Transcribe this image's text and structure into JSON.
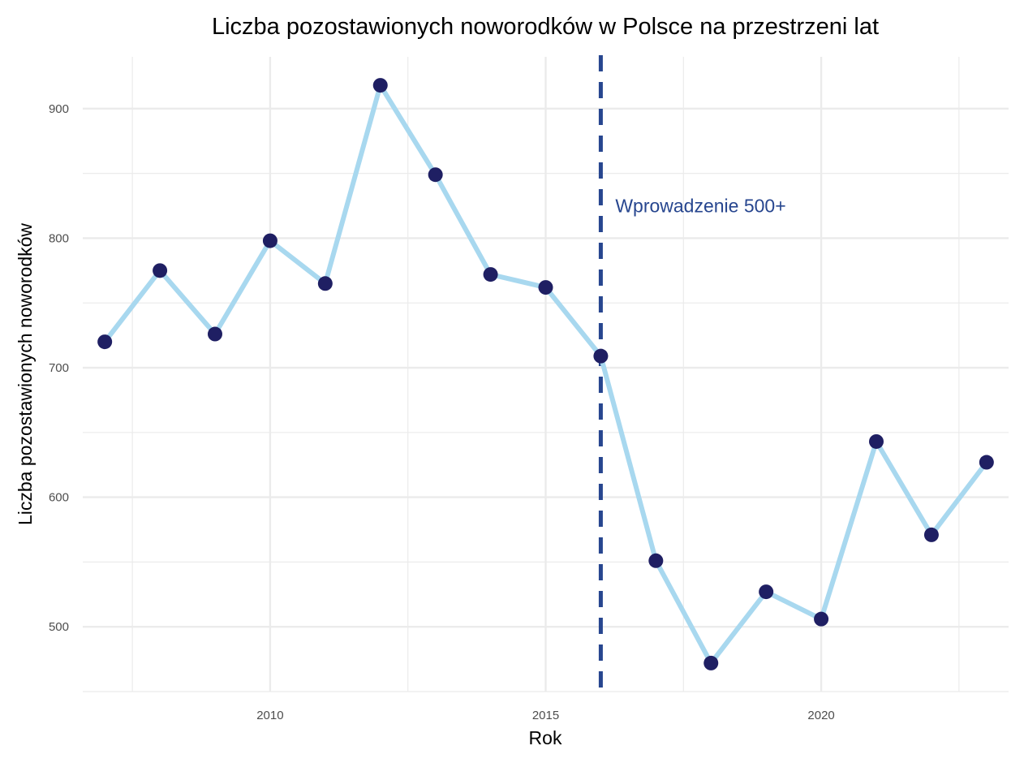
{
  "chart_data": {
    "type": "line",
    "title": "Liczba pozostawionych noworodków w Polsce na przestrzeni lat",
    "xlabel": "Rok",
    "ylabel": "Liczba pozostawionych noworodków",
    "xlim": [
      2006.6,
      2023.4
    ],
    "ylim": [
      450,
      940
    ],
    "x_ticks": [
      2010,
      2015,
      2020
    ],
    "x_tick_labels": [
      "2010",
      "2015",
      "2020"
    ],
    "y_ticks": [
      500,
      600,
      700,
      800,
      900
    ],
    "y_tick_labels": [
      "500",
      "600",
      "700",
      "800",
      "900"
    ],
    "grid": true,
    "series": [
      {
        "x": [
          2007,
          2008,
          2009,
          2010,
          2011,
          2012,
          2013,
          2014,
          2015,
          2016,
          2017,
          2018,
          2019,
          2020,
          2021,
          2022,
          2023
        ],
        "values": [
          720,
          775,
          726,
          798,
          765,
          918,
          849,
          772,
          762,
          709,
          551,
          472,
          527,
          506,
          643,
          571,
          627
        ],
        "line_color": "#a8d8ef",
        "point_color": "#1f1f63"
      }
    ],
    "annotations": [
      {
        "type": "vline",
        "x": 2016,
        "style": "dashed",
        "color": "#27468f",
        "label": "Wprowadzenie 500+",
        "label_x": 2017,
        "label_y": 825
      }
    ]
  }
}
